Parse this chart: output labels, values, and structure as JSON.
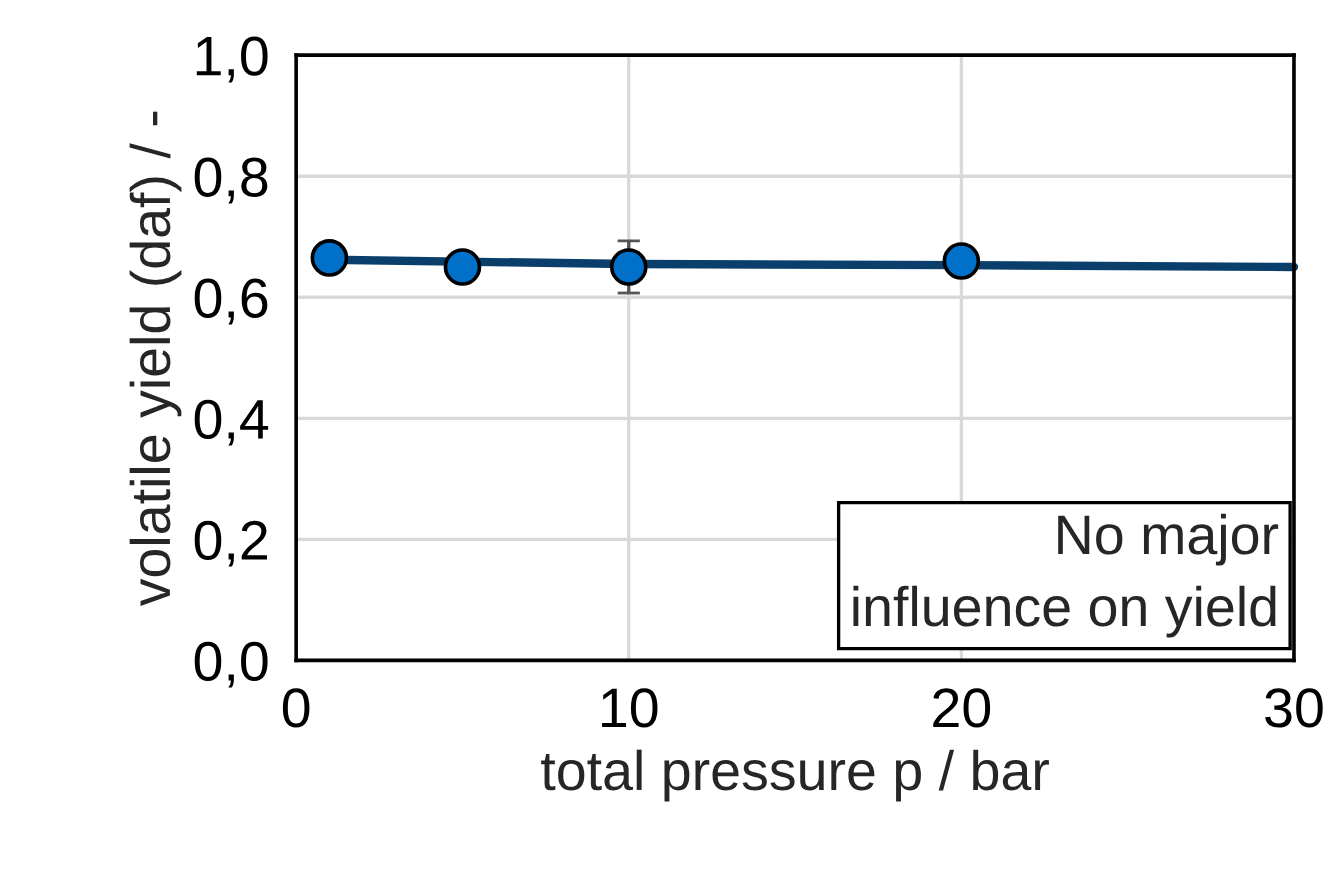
{
  "chart_data": {
    "type": "scatter",
    "xlabel": "total pressure p / bar",
    "ylabel": "volatile yield (daf) / -",
    "series": [
      {
        "type": "line",
        "color": "#0b3f6b",
        "x": [
          1,
          10,
          20,
          30
        ],
        "values": [
          0.662,
          0.655,
          0.653,
          0.65
        ],
        "marker": "none"
      },
      {
        "color": "#0070c8",
        "x": [
          1,
          5,
          10,
          20
        ],
        "values": [
          0.665,
          0.65,
          0.65,
          0.66
        ],
        "errors": [
          null,
          null,
          0.043,
          null
        ],
        "marker": "circle"
      }
    ],
    "annotations": [
      "No major\ninfluence on yield"
    ],
    "xlim": [
      0,
      30
    ],
    "xticks": [
      0,
      10,
      20,
      30
    ],
    "ylim": [
      0,
      1
    ],
    "yticks": [
      {
        "value": 0,
        "label": "0,0"
      },
      {
        "value": 0.2,
        "label": "0,2"
      },
      {
        "value": 0.4,
        "label": "0,4"
      },
      {
        "value": 0.6,
        "label": "0,6"
      },
      {
        "value": 0.8,
        "label": "0,8"
      },
      {
        "value": 1,
        "label": "1,0"
      }
    ],
    "grid": true
  }
}
